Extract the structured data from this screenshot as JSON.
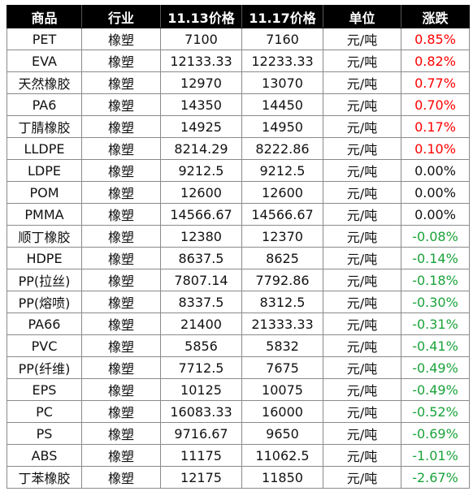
{
  "header": [
    "商品",
    "行业",
    "11.13价格",
    "11.17价格",
    "单位",
    "涨跌"
  ],
  "rows": [
    {
      "name": "PET",
      "industry": "橡塑",
      "p1": "7100",
      "p2": "7160",
      "unit": "元/吨",
      "change": "0.85%",
      "trend": "up"
    },
    {
      "name": "EVA",
      "industry": "橡塑",
      "p1": "12133.33",
      "p2": "12233.33",
      "unit": "元/吨",
      "change": "0.82%",
      "trend": "up"
    },
    {
      "name": "天然橡胶",
      "industry": "橡塑",
      "p1": "12970",
      "p2": "13070",
      "unit": "元/吨",
      "change": "0.77%",
      "trend": "up"
    },
    {
      "name": "PA6",
      "industry": "橡塑",
      "p1": "14350",
      "p2": "14450",
      "unit": "元/吨",
      "change": "0.70%",
      "trend": "up"
    },
    {
      "name": "丁腈橡胶",
      "industry": "橡塑",
      "p1": "14925",
      "p2": "14950",
      "unit": "元/吨",
      "change": "0.17%",
      "trend": "up"
    },
    {
      "name": "LLDPE",
      "industry": "橡塑",
      "p1": "8214.29",
      "p2": "8222.86",
      "unit": "元/吨",
      "change": "0.10%",
      "trend": "up"
    },
    {
      "name": "LDPE",
      "industry": "橡塑",
      "p1": "9212.5",
      "p2": "9212.5",
      "unit": "元/吨",
      "change": "0.00%",
      "trend": "flat"
    },
    {
      "name": "POM",
      "industry": "橡塑",
      "p1": "12600",
      "p2": "12600",
      "unit": "元/吨",
      "change": "0.00%",
      "trend": "flat"
    },
    {
      "name": "PMMA",
      "industry": "橡塑",
      "p1": "14566.67",
      "p2": "14566.67",
      "unit": "元/吨",
      "change": "0.00%",
      "trend": "flat"
    },
    {
      "name": "顺丁橡胶",
      "industry": "橡塑",
      "p1": "12380",
      "p2": "12370",
      "unit": "元/吨",
      "change": "-0.08%",
      "trend": "down"
    },
    {
      "name": "HDPE",
      "industry": "橡塑",
      "p1": "8637.5",
      "p2": "8625",
      "unit": "元/吨",
      "change": "-0.14%",
      "trend": "down"
    },
    {
      "name": "PP(拉丝)",
      "industry": "橡塑",
      "p1": "7807.14",
      "p2": "7792.86",
      "unit": "元/吨",
      "change": "-0.18%",
      "trend": "down"
    },
    {
      "name": "PP(熔喷)",
      "industry": "橡塑",
      "p1": "8337.5",
      "p2": "8312.5",
      "unit": "元/吨",
      "change": "-0.30%",
      "trend": "down"
    },
    {
      "name": "PA66",
      "industry": "橡塑",
      "p1": "21400",
      "p2": "21333.33",
      "unit": "元/吨",
      "change": "-0.31%",
      "trend": "down"
    },
    {
      "name": "PVC",
      "industry": "橡塑",
      "p1": "5856",
      "p2": "5832",
      "unit": "元/吨",
      "change": "-0.41%",
      "trend": "down"
    },
    {
      "name": "PP(纤维)",
      "industry": "橡塑",
      "p1": "7712.5",
      "p2": "7675",
      "unit": "元/吨",
      "change": "-0.49%",
      "trend": "down"
    },
    {
      "name": "EPS",
      "industry": "橡塑",
      "p1": "10125",
      "p2": "10075",
      "unit": "元/吨",
      "change": "-0.49%",
      "trend": "down"
    },
    {
      "name": "PC",
      "industry": "橡塑",
      "p1": "16083.33",
      "p2": "16000",
      "unit": "元/吨",
      "change": "-0.52%",
      "trend": "down"
    },
    {
      "name": "PS",
      "industry": "橡塑",
      "p1": "9716.67",
      "p2": "9650",
      "unit": "元/吨",
      "change": "-0.69%",
      "trend": "down"
    },
    {
      "name": "ABS",
      "industry": "橡塑",
      "p1": "11175",
      "p2": "11062.5",
      "unit": "元/吨",
      "change": "-1.01%",
      "trend": "down"
    },
    {
      "name": "丁苯橡胶",
      "industry": "橡塑",
      "p1": "12175",
      "p2": "11850",
      "unit": "元/吨",
      "change": "-2.67%",
      "trend": "down"
    }
  ],
  "colors": {
    "header_bg": "#000000",
    "header_text": "#ffffff",
    "up": "#ff0000",
    "down": "#1aa33a",
    "flat": "#111111"
  }
}
